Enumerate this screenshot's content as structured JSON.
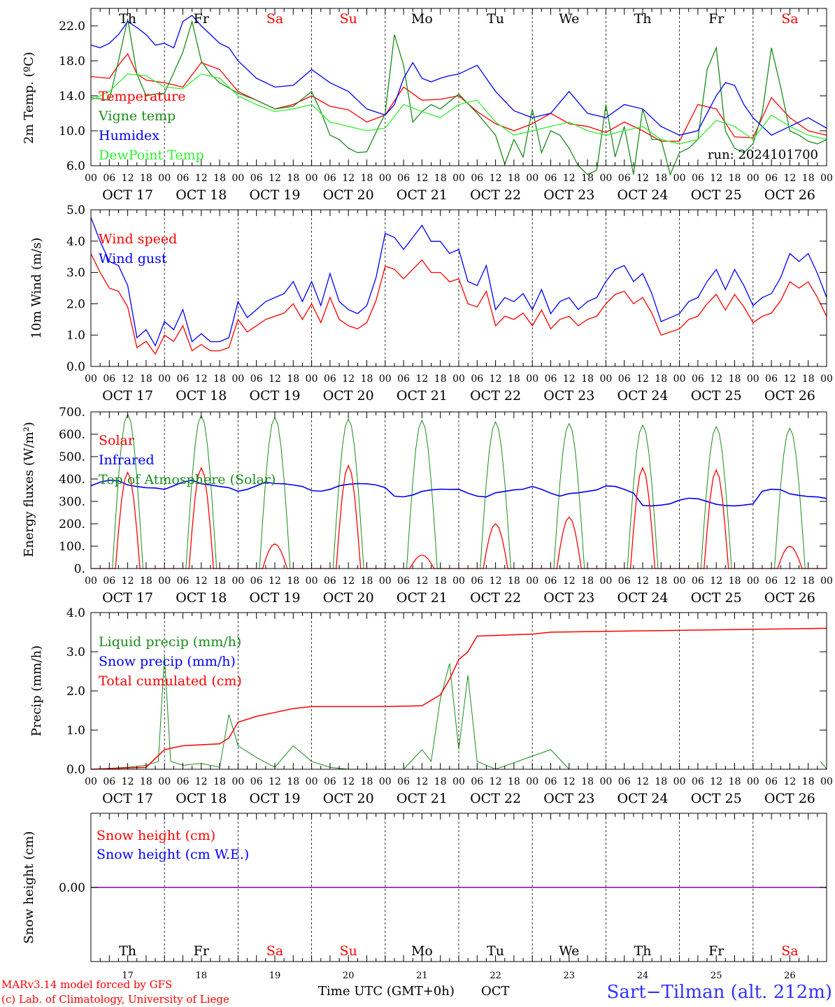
{
  "days": {
    "names": [
      "Th",
      "Fr",
      "Sa",
      "Su",
      "Mo",
      "Tu",
      "We",
      "Th",
      "Fr",
      "Sa"
    ],
    "weekend": [
      false,
      false,
      true,
      true,
      false,
      false,
      false,
      false,
      false,
      true
    ],
    "dates": [
      "OCT 17",
      "OCT 18",
      "OCT 19",
      "OCT 20",
      "OCT 21",
      "OCT 22",
      "OCT 23",
      "OCT 24",
      "OCT 25",
      "OCT 26"
    ],
    "numbers": [
      "17",
      "18",
      "19",
      "20",
      "21",
      "22",
      "23",
      "24",
      "25",
      "26"
    ],
    "hour_ticks": [
      "00",
      "06",
      "12",
      "18"
    ],
    "last_tick": "00"
  },
  "colors": {
    "red": "#ff0000",
    "darkgreen": "#1a8c1a",
    "blue": "#0000ff",
    "lightgreen": "#33ee33",
    "purple": "#7f00a0",
    "title_blue": "#3333ff"
  },
  "run_label": "run: 2024101700",
  "footer": {
    "credit1": "MARv3.14 model forced by GFS",
    "credit2": "(c) Lab. of Climatology, University of Liege",
    "axis_title": "Time UTC (GMT+0h)",
    "month": "OCT",
    "station": "Sart−Tilman (alt. 212m)"
  },
  "chart_data": [
    {
      "type": "line",
      "ylabel": "2m Temp. (ºC)",
      "ylim": [
        6,
        24
      ],
      "yticks": [
        "6.0",
        "10.0",
        "14.0",
        "18.0",
        "22.0"
      ],
      "yticks_values": [
        6,
        10,
        14,
        18,
        22
      ],
      "series": [
        {
          "name": "Temperature",
          "color": "red",
          "x": [
            0,
            6,
            9,
            12,
            15,
            18,
            24,
            30,
            36,
            42,
            48,
            54,
            60,
            66,
            72,
            78,
            84,
            90,
            96,
            102,
            108,
            114,
            120,
            126,
            132,
            138,
            144,
            150,
            156,
            162,
            168,
            174,
            180,
            186,
            192,
            198,
            204,
            210,
            216,
            222,
            228,
            234,
            240
          ],
          "y": [
            16.2,
            16,
            17.5,
            18.8,
            16.5,
            15.8,
            15.5,
            15,
            17.8,
            17,
            14.5,
            13.5,
            12.5,
            13,
            14,
            12.8,
            12.4,
            11,
            11.8,
            15,
            13.5,
            13.6,
            14,
            12.2,
            10.8,
            10,
            10.8,
            12,
            10.8,
            10.5,
            9.8,
            11,
            10,
            8.8,
            8.8,
            13,
            12.5,
            9.3,
            9.2,
            13.8,
            11.5,
            10,
            9.5
          ]
        },
        {
          "name": "Vigne temp",
          "color": "darkgreen",
          "x": [
            0,
            6,
            9,
            12,
            15,
            18,
            21,
            24,
            30,
            33,
            36,
            39,
            42,
            48,
            54,
            60,
            66,
            72,
            75,
            78,
            81,
            84,
            87,
            90,
            96,
            99,
            102,
            105,
            108,
            111,
            114,
            120,
            126,
            132,
            135,
            138,
            141,
            144,
            147,
            150,
            153,
            156,
            159,
            162,
            165,
            168,
            171,
            174,
            177,
            180,
            183,
            186,
            189,
            192,
            195,
            198,
            201,
            204,
            207,
            210,
            213,
            216,
            219,
            222,
            225,
            228,
            231,
            234,
            237,
            240
          ],
          "y": [
            13.8,
            13.5,
            18,
            22.8,
            16.5,
            14,
            14.2,
            14.3,
            19,
            22.5,
            18,
            16.5,
            15.5,
            14.3,
            13.5,
            12.5,
            12.8,
            14.5,
            12.2,
            9.5,
            9,
            8,
            7.5,
            7.6,
            12,
            21,
            17.5,
            11,
            12.2,
            13,
            12.5,
            14.2,
            12,
            9.5,
            6.2,
            9,
            7,
            12.5,
            7.5,
            10,
            9.5,
            8,
            6,
            5,
            5.5,
            13,
            7,
            10.5,
            5,
            12.5,
            9,
            9,
            5,
            7.5,
            8,
            9,
            17,
            19.5,
            10,
            8,
            7.5,
            8.5,
            12,
            19.5,
            15,
            10,
            9.5,
            8.8,
            8.5,
            9
          ]
        },
        {
          "name": "Humidex",
          "color": "blue",
          "x": [
            0,
            3,
            6,
            9,
            12,
            15,
            18,
            21,
            24,
            27,
            30,
            33,
            36,
            39,
            42,
            45,
            48,
            54,
            60,
            66,
            72,
            78,
            84,
            90,
            96,
            99,
            102,
            105,
            108,
            111,
            114,
            117,
            120,
            126,
            132,
            138,
            144,
            150,
            156,
            162,
            168,
            174,
            180,
            186,
            192,
            198,
            204,
            207,
            210,
            213,
            216,
            222,
            228,
            234,
            240
          ],
          "y": [
            19.8,
            19.5,
            20,
            21,
            22.5,
            21.8,
            21,
            19.8,
            20,
            19.5,
            22.5,
            23.2,
            22,
            21,
            20,
            19.5,
            18,
            16,
            15,
            15.2,
            17,
            15.5,
            14.5,
            12.5,
            11.8,
            13,
            16,
            17.8,
            16,
            15.6,
            16,
            16.3,
            16.5,
            17.5,
            14.5,
            12.3,
            11.5,
            12,
            14.5,
            12,
            11.5,
            13,
            12.5,
            10.5,
            9.5,
            10,
            14,
            15.5,
            15.2,
            13,
            11.5,
            9.5,
            10.5,
            11.5,
            10.3
          ]
        },
        {
          "name": "DewPoint Temp",
          "color": "lightgreen",
          "x": [
            0,
            6,
            12,
            18,
            24,
            30,
            36,
            42,
            48,
            54,
            60,
            66,
            72,
            78,
            84,
            90,
            96,
            102,
            108,
            114,
            120,
            126,
            132,
            138,
            144,
            150,
            156,
            162,
            168,
            174,
            180,
            186,
            192,
            198,
            204,
            210,
            216,
            222,
            228,
            234,
            240
          ],
          "y": [
            13.5,
            14.5,
            16.5,
            16.3,
            15,
            14.8,
            16.5,
            16,
            14,
            13,
            12.2,
            12.5,
            13,
            11,
            10.5,
            10,
            10.3,
            13,
            12.2,
            11.5,
            13,
            13.5,
            11,
            9.5,
            10,
            10.5,
            11,
            10,
            9.5,
            10,
            10.5,
            9,
            8.5,
            9,
            11.2,
            10.5,
            9,
            11.8,
            10.5,
            9.5,
            9
          ]
        }
      ]
    },
    {
      "type": "line",
      "ylabel": "10m Wind (m/s)",
      "ylim": [
        0,
        5
      ],
      "yticks": [
        "0.0",
        "1.0",
        "2.0",
        "3.0",
        "4.0",
        "5.0"
      ],
      "yticks_values": [
        0,
        1,
        2,
        3,
        4,
        5
      ],
      "series": [
        {
          "name": "Wind speed",
          "color": "red",
          "x": [
            0,
            3,
            6,
            9,
            12,
            15,
            18,
            21,
            24,
            27,
            30,
            33,
            36,
            39,
            42,
            45,
            48,
            51,
            54,
            57,
            60,
            63,
            66,
            69,
            72,
            75,
            78,
            81,
            84,
            87,
            90,
            93,
            96,
            99,
            102,
            105,
            108,
            111,
            114,
            117,
            120,
            123,
            126,
            129,
            132,
            135,
            138,
            141,
            144,
            147,
            150,
            153,
            156,
            159,
            162,
            165,
            168,
            171,
            174,
            177,
            180,
            183,
            186,
            189,
            192,
            195,
            198,
            201,
            204,
            207,
            210,
            213,
            216,
            219,
            222,
            225,
            228,
            231,
            234,
            237,
            240
          ],
          "y": [
            3.6,
            3,
            2.5,
            2.4,
            1.9,
            0.6,
            0.8,
            0.4,
            1,
            0.8,
            1.3,
            0.5,
            0.7,
            0.5,
            0.5,
            0.6,
            1.5,
            1.1,
            1.3,
            1.5,
            1.6,
            1.7,
            2,
            1.5,
            2,
            1.4,
            2.2,
            1.5,
            1.3,
            1.2,
            1.4,
            2.1,
            3.2,
            3.1,
            2.8,
            3.1,
            3.4,
            3.0,
            3.0,
            2.7,
            2.8,
            2.0,
            1.9,
            2.4,
            1.3,
            1.6,
            1.5,
            1.7,
            1.3,
            1.8,
            1.2,
            1.5,
            1.6,
            1.3,
            1.5,
            1.6,
            2.0,
            2.3,
            2.4,
            2.0,
            2.2,
            1.7,
            1.0,
            1.1,
            1.2,
            1.5,
            1.6,
            2.0,
            2.3,
            1.8,
            2.3,
            1.9,
            1.4,
            1.6,
            1.7,
            2.1,
            2.7,
            2.5,
            2.7,
            2.2,
            1.6
          ]
        }
      ]
    }
  ]
}
